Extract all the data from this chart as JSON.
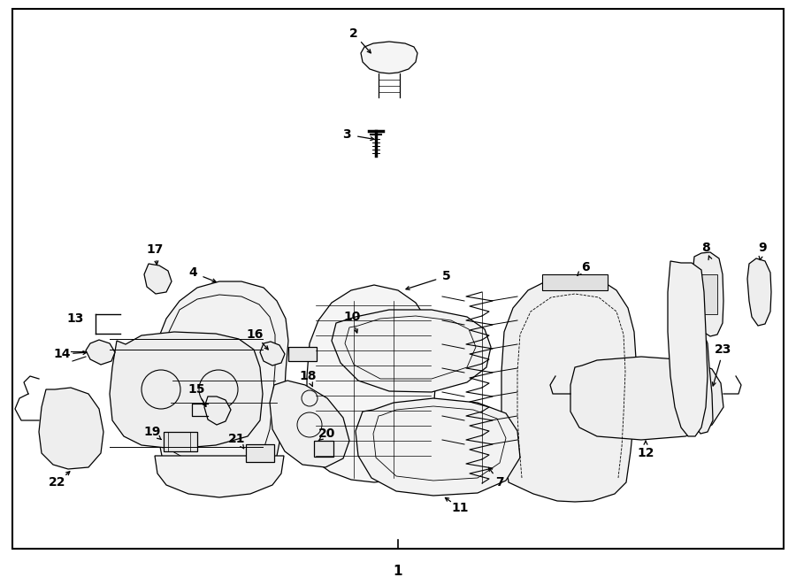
{
  "bg_color": "#ffffff",
  "border_color": "#000000",
  "line_color": "#000000",
  "fig_width": 9.0,
  "fig_height": 6.61,
  "dpi": 100,
  "border_lw": 1.5,
  "label_fontsize": 10,
  "part_lw": 0.9,
  "bottom_label": "1"
}
